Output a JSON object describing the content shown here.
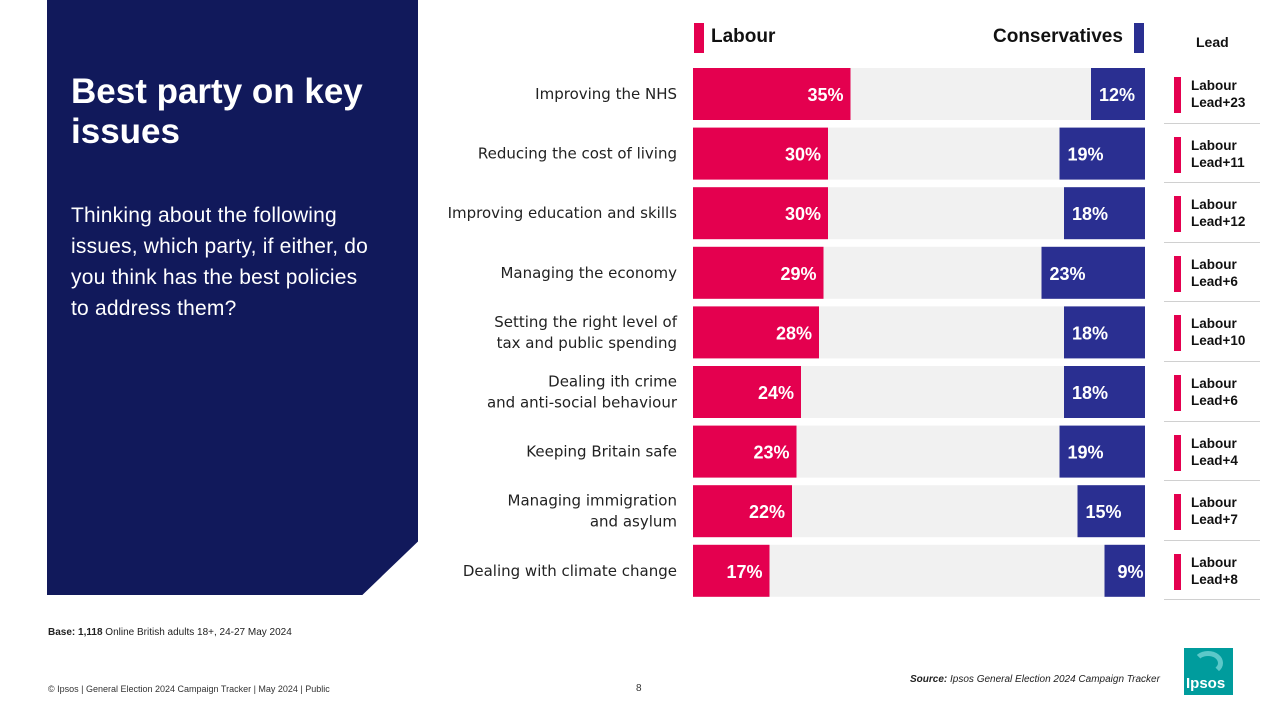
{
  "panel": {
    "title": "Best party on key issues",
    "question": "Thinking about the following issues, which party, if either, do you think has the best policies to address them?"
  },
  "legend": {
    "labour_label": "Labour",
    "conservatives_label": "Conservatives",
    "lead_header": "Lead"
  },
  "colors": {
    "labour": "#e4004f",
    "conservatives": "#2a2f91",
    "track": "#f1f1f1",
    "panel": "#11195b"
  },
  "chart_data": {
    "type": "bar",
    "title": "Best party on key issues",
    "categories": [
      [
        "Improving the NHS"
      ],
      [
        "Reducing the cost of living"
      ],
      [
        "Improving education and skills"
      ],
      [
        "Managing the economy"
      ],
      [
        "Setting the right level of",
        "tax and public spending"
      ],
      [
        "Dealing ith crime",
        "and anti-social behaviour"
      ],
      [
        "Keeping Britain safe"
      ],
      [
        "Managing immigration",
        "and asylum"
      ],
      [
        "Dealing with climate change"
      ]
    ],
    "series": [
      {
        "name": "Labour",
        "values": [
          35,
          30,
          30,
          29,
          28,
          24,
          23,
          22,
          17
        ],
        "labels": [
          "35%",
          "30%",
          "30%",
          "29%",
          "28%",
          "24%",
          "23%",
          "22%",
          "17%"
        ]
      },
      {
        "name": "Conservatives",
        "values": [
          12,
          19,
          18,
          23,
          18,
          18,
          19,
          15,
          9
        ],
        "labels": [
          "12%",
          "19%",
          "18%",
          "23%",
          "18%",
          "18%",
          "19%",
          "15%",
          "9%"
        ]
      }
    ],
    "xlim": [
      0,
      100
    ],
    "unit": "%"
  },
  "leads": [
    "Labour\nLead+23",
    "Labour\nLead+11",
    "Labour\nLead+12",
    "Labour\nLead+6",
    "Labour\nLead+10",
    "Labour\nLead+6",
    "Labour\nLead+4",
    "Labour\nLead+7",
    "Labour\nLead+8"
  ],
  "notes": {
    "base_label": "Base:",
    "base_count": "1,118",
    "base_text": "Online British adults 18+, 24-27 May 2024",
    "source_label": "Source:",
    "source_text": "Ipsos General Election 2024 Campaign Tracker",
    "footer": "© Ipsos | General Election 2024 Campaign Tracker | May 2024 | Public",
    "page_number": "8",
    "logo_text": "Ipsos"
  }
}
